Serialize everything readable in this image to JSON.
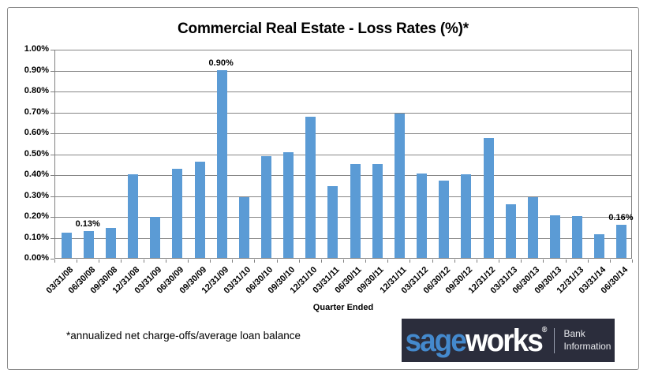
{
  "chart_data": {
    "type": "bar",
    "title": "Commercial Real Estate - Loss Rates (%)*",
    "xlabel": "Quarter Ended",
    "ylabel": "",
    "ylim": [
      0,
      1.0
    ],
    "ytick_step": 0.1,
    "ytick_labels": [
      "1.00%",
      "0.90%",
      "0.80%",
      "0.70%",
      "0.60%",
      "0.50%",
      "0.40%",
      "0.30%",
      "0.20%",
      "0.10%",
      "0.00%"
    ],
    "grid": true,
    "legend_position": "none",
    "bar_color": "#5B9BD5",
    "gridline_color": "#868686",
    "categories": [
      "03/31/08",
      "06/30/08",
      "09/30/08",
      "12/31/08",
      "03/31/09",
      "06/30/09",
      "09/30/09",
      "12/31/09",
      "03/31/10",
      "06/30/10",
      "09/30/10",
      "12/31/10",
      "03/31/11",
      "06/30/11",
      "09/30/11",
      "12/31/11",
      "03/31/12",
      "06/30/12",
      "09/30/12",
      "12/31/12",
      "03/31/13",
      "06/30/13",
      "09/30/13",
      "12/31/13",
      "03/31/14",
      "06/30/14"
    ],
    "values": [
      0.12,
      0.13,
      0.145,
      0.4,
      0.195,
      0.425,
      0.46,
      0.9,
      0.29,
      0.485,
      0.505,
      0.675,
      0.345,
      0.45,
      0.45,
      0.69,
      0.405,
      0.37,
      0.4,
      0.575,
      0.255,
      0.29,
      0.205,
      0.2,
      0.115,
      0.16
    ],
    "point_labels": [
      {
        "index": 1,
        "text": "0.13%"
      },
      {
        "index": 7,
        "text": "0.90%"
      },
      {
        "index": 25,
        "text": "0.16%"
      }
    ]
  },
  "footnote": "*annualized net charge-offs/average loan balance",
  "logo": {
    "brand_part1": "sage",
    "brand_part2": "works",
    "registered_mark": "®",
    "tagline_line1": "Bank",
    "tagline_line2": "Information",
    "bg_color": "#2B2D3C",
    "brand_blue": "#4489CD",
    "brand_white": "#FFFFFF"
  }
}
